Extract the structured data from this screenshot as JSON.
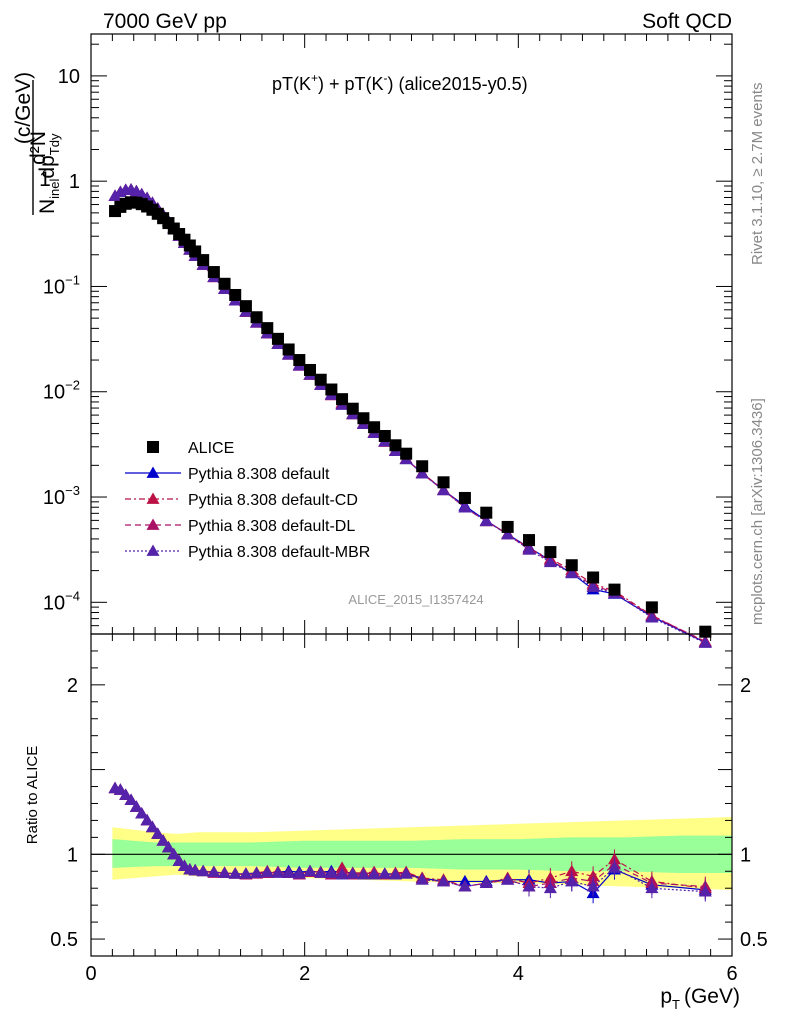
{
  "header": {
    "left": "7000 GeV pp",
    "right": "Soft QCD",
    "side_top": "Rivet 3.1.10, ≥ 2.7M events",
    "side_bottom": "mcplots.cern.ch [arXiv:1306.3436]",
    "watermark": "ALICE_2015_I1357424"
  },
  "chart_data": {
    "type": "scatter",
    "title_parts": {
      "a": "pT(K",
      "a_sup": "+",
      "b": ") + pT(K",
      "b_sup": "-",
      "c": ") (alice2015-y0.5)"
    },
    "xlabel": "p",
    "xlabel_sub": "T",
    "xlabel_unit": "(GeV)",
    "ylabel": {
      "num": "1",
      "num2": "d²N",
      "den": "N",
      "den_sub": "inel",
      "den2": "dp",
      "den2_sub": "Tdy",
      "unit": "(c/GeV)"
    },
    "ratio_ylabel": "Ratio to ALICE",
    "x_range": [
      0,
      6
    ],
    "y_range": [
      5e-05,
      25
    ],
    "y_scale": "log",
    "ratio_range": [
      0.4,
      2.3
    ],
    "x_ticks": [
      "0",
      "2",
      "4",
      "6"
    ],
    "y_ticks": [
      {
        "v": 10,
        "b": "10",
        "e": ""
      },
      {
        "v": 1,
        "b": "1",
        "e": ""
      },
      {
        "v": 0.1,
        "b": "10",
        "e": "−1"
      },
      {
        "v": 0.01,
        "b": "10",
        "e": "−2"
      },
      {
        "v": 0.001,
        "b": "10",
        "e": "−3"
      },
      {
        "v": 0.0001,
        "b": "10",
        "e": "−4"
      }
    ],
    "ratio_ticks": [
      {
        "v": 2,
        "label": "2"
      },
      {
        "v": 1,
        "label": "1"
      },
      {
        "v": 0.5,
        "label": "0.5"
      }
    ],
    "x": [
      0.225,
      0.275,
      0.325,
      0.375,
      0.425,
      0.475,
      0.525,
      0.575,
      0.625,
      0.675,
      0.725,
      0.775,
      0.825,
      0.875,
      0.925,
      0.975,
      1.05,
      1.15,
      1.25,
      1.35,
      1.45,
      1.55,
      1.65,
      1.75,
      1.85,
      1.95,
      2.05,
      2.15,
      2.25,
      2.35,
      2.45,
      2.55,
      2.65,
      2.75,
      2.85,
      2.95,
      3.1,
      3.3,
      3.5,
      3.7,
      3.9,
      4.1,
      4.3,
      4.5,
      4.7,
      4.9,
      5.25,
      5.75
    ],
    "alice": [
      0.52,
      0.57,
      0.61,
      0.63,
      0.625,
      0.605,
      0.575,
      0.535,
      0.49,
      0.445,
      0.4,
      0.355,
      0.315,
      0.278,
      0.245,
      0.215,
      0.178,
      0.137,
      0.106,
      0.083,
      0.065,
      0.051,
      0.0402,
      0.0318,
      0.0252,
      0.02,
      0.0161,
      0.013,
      0.0105,
      0.0085,
      0.0069,
      0.0056,
      0.0046,
      0.0038,
      0.0031,
      0.00258,
      0.00196,
      0.00138,
      0.00098,
      0.00071,
      0.00052,
      0.00039,
      0.0003,
      0.000225,
      0.000172,
      0.000132,
      8.95e-05,
      5.26e-05
    ],
    "series": [
      {
        "name": "ALICE",
        "color": "#000000",
        "style": "none",
        "marker": "square"
      },
      {
        "name": "Pythia 8.308 default",
        "color": "#0000cc",
        "style": "solid",
        "marker": "triangle",
        "ratio": [
          1.39,
          1.38,
          1.35,
          1.32,
          1.28,
          1.24,
          1.2,
          1.16,
          1.12,
          1.08,
          1.04,
          1.0,
          0.96,
          0.93,
          0.91,
          0.905,
          0.9,
          0.895,
          0.89,
          0.885,
          0.885,
          0.89,
          0.89,
          0.895,
          0.9,
          0.895,
          0.9,
          0.895,
          0.9,
          0.895,
          0.89,
          0.89,
          0.885,
          0.885,
          0.885,
          0.885,
          0.86,
          0.84,
          0.84,
          0.84,
          0.85,
          0.85,
          0.83,
          0.84,
          0.77,
          0.91,
          0.82,
          0.79
        ]
      },
      {
        "name": "Pythia 8.308 default-CD",
        "color": "#bb1144",
        "style": "dashdot",
        "marker": "triangle",
        "ratio": [
          1.39,
          1.38,
          1.35,
          1.32,
          1.28,
          1.24,
          1.2,
          1.16,
          1.12,
          1.08,
          1.04,
          1.0,
          0.96,
          0.93,
          0.91,
          0.905,
          0.9,
          0.895,
          0.89,
          0.885,
          0.88,
          0.89,
          0.9,
          0.895,
          0.89,
          0.885,
          0.9,
          0.895,
          0.89,
          0.92,
          0.89,
          0.89,
          0.895,
          0.88,
          0.89,
          0.895,
          0.86,
          0.85,
          0.81,
          0.83,
          0.86,
          0.83,
          0.86,
          0.9,
          0.87,
          0.97,
          0.84,
          0.8
        ]
      },
      {
        "name": "Pythia 8.308 default-DL",
        "color": "#aa1166",
        "style": "dashed",
        "marker": "triangle",
        "ratio": [
          1.39,
          1.38,
          1.35,
          1.32,
          1.28,
          1.24,
          1.2,
          1.16,
          1.12,
          1.08,
          1.04,
          1.0,
          0.96,
          0.93,
          0.91,
          0.905,
          0.9,
          0.89,
          0.89,
          0.885,
          0.88,
          0.885,
          0.89,
          0.895,
          0.89,
          0.88,
          0.895,
          0.89,
          0.88,
          0.9,
          0.88,
          0.885,
          0.89,
          0.88,
          0.885,
          0.89,
          0.85,
          0.84,
          0.81,
          0.83,
          0.85,
          0.81,
          0.83,
          0.86,
          0.84,
          0.94,
          0.83,
          0.81
        ]
      },
      {
        "name": "Pythia 8.308 default-MBR",
        "color": "#5522aa",
        "style": "dotted",
        "marker": "triangle",
        "ratio": [
          1.39,
          1.38,
          1.35,
          1.32,
          1.28,
          1.24,
          1.2,
          1.16,
          1.12,
          1.08,
          1.04,
          1.0,
          0.96,
          0.93,
          0.91,
          0.905,
          0.9,
          0.895,
          0.89,
          0.885,
          0.885,
          0.89,
          0.895,
          0.89,
          0.89,
          0.885,
          0.9,
          0.89,
          0.89,
          0.88,
          0.885,
          0.88,
          0.88,
          0.885,
          0.88,
          0.885,
          0.85,
          0.84,
          0.81,
          0.83,
          0.85,
          0.81,
          0.8,
          0.84,
          0.81,
          0.92,
          0.8,
          0.78
        ]
      }
    ],
    "band_x": [
      0.2,
      0.6,
      0.8,
      1.0,
      1.5,
      2.0,
      2.5,
      3.0,
      3.5,
      4.0,
      4.5,
      5.0,
      5.5,
      6.0
    ],
    "band_green_up": [
      1.09,
      1.07,
      1.07,
      1.07,
      1.07,
      1.08,
      1.08,
      1.08,
      1.09,
      1.09,
      1.1,
      1.1,
      1.11,
      1.11
    ],
    "band_green_dn": [
      0.92,
      0.93,
      0.93,
      0.93,
      0.93,
      0.92,
      0.92,
      0.92,
      0.91,
      0.91,
      0.9,
      0.9,
      0.89,
      0.89
    ],
    "band_yellow_up": [
      1.16,
      1.13,
      1.12,
      1.13,
      1.13,
      1.14,
      1.15,
      1.16,
      1.17,
      1.18,
      1.19,
      1.2,
      1.21,
      1.22
    ],
    "band_yellow_dn": [
      0.85,
      0.87,
      0.88,
      0.87,
      0.87,
      0.86,
      0.85,
      0.84,
      0.83,
      0.83,
      0.82,
      0.81,
      0.8,
      0.79
    ]
  }
}
